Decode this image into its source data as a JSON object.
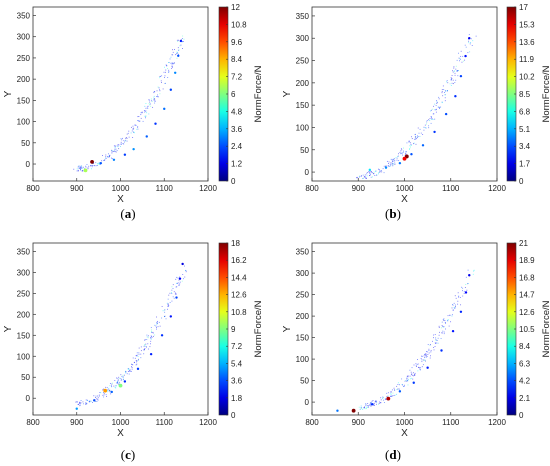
{
  "chart_data": [
    {
      "type": "scatter",
      "panel_label": "a",
      "xlabel": "X",
      "ylabel": "Y",
      "xlim": [
        800,
        1200
      ],
      "ylim": [
        -40,
        370
      ],
      "xticks": [
        "800",
        "900",
        "1000",
        "1100",
        "1200"
      ],
      "yticks": [
        "0",
        "50",
        "100",
        "150",
        "200",
        "250",
        "300",
        "350"
      ],
      "colorbar": {
        "label": "NormForce/N",
        "min": 0,
        "max": 12,
        "ticks": [
          "0",
          "1.2",
          "2.4",
          "3.6",
          "4.8",
          "6",
          "7.2",
          "8.4",
          "9.6",
          "10.8",
          "12"
        ]
      },
      "points": [
        [
          935,
          5,
          12
        ],
        [
          920,
          -15,
          6.5
        ],
        [
          955,
          2,
          2.5
        ],
        [
          985,
          10,
          3
        ],
        [
          1010,
          22,
          2.2
        ],
        [
          1030,
          35,
          3.2
        ],
        [
          1060,
          65,
          2.6
        ],
        [
          1080,
          95,
          2.1
        ],
        [
          1100,
          130,
          2.8
        ],
        [
          1115,
          175,
          2.3
        ],
        [
          1125,
          215,
          3.1
        ],
        [
          1132,
          255,
          2.5
        ],
        [
          1138,
          290,
          1.8
        ]
      ]
    },
    {
      "type": "scatter",
      "panel_label": "b",
      "xlabel": "X",
      "ylabel": "Y",
      "xlim": [
        800,
        1200
      ],
      "ylim": [
        -20,
        370
      ],
      "xticks": [
        "800",
        "900",
        "1000",
        "1100",
        "1200"
      ],
      "yticks": [
        "0",
        "50",
        "100",
        "150",
        "200",
        "250",
        "300",
        "350"
      ],
      "colorbar": {
        "label": "NormForce/N",
        "min": 0,
        "max": 17,
        "ticks": [
          "0",
          "1.7",
          "3.4",
          "5.1",
          "6.8",
          "8.5",
          "10.2",
          "11.9",
          "13.6",
          "15.3",
          "17"
        ]
      },
      "points": [
        [
          1005,
          35,
          17
        ],
        [
          1000,
          30,
          15
        ],
        [
          925,
          5,
          6
        ],
        [
          960,
          10,
          4.5
        ],
        [
          990,
          20,
          4
        ],
        [
          1015,
          40,
          3.5
        ],
        [
          1040,
          60,
          3.8
        ],
        [
          1065,
          90,
          3
        ],
        [
          1090,
          130,
          3.4
        ],
        [
          1110,
          170,
          2.9
        ],
        [
          1122,
          215,
          3.2
        ],
        [
          1132,
          260,
          2.4
        ],
        [
          1140,
          300,
          1.9
        ]
      ]
    },
    {
      "type": "scatter",
      "panel_label": "c",
      "xlabel": "X",
      "ylabel": "Y",
      "xlim": [
        800,
        1200
      ],
      "ylim": [
        -40,
        370
      ],
      "xticks": [
        "800",
        "900",
        "1000",
        "1100",
        "1200"
      ],
      "yticks": [
        "0",
        "50",
        "100",
        "150",
        "200",
        "250",
        "300",
        "350"
      ],
      "colorbar": {
        "label": "NormForce/N",
        "min": 0,
        "max": 18,
        "ticks": [
          "0",
          "1.8",
          "3.6",
          "5.4",
          "7.2",
          "9",
          "10.8",
          "12.6",
          "14.4",
          "16.2",
          "18"
        ]
      },
      "points": [
        [
          965,
          18,
          13
        ],
        [
          1000,
          30,
          9
        ],
        [
          900,
          -25,
          5
        ],
        [
          940,
          -5,
          3.5
        ],
        [
          980,
          15,
          4
        ],
        [
          1010,
          40,
          3
        ],
        [
          1040,
          70,
          3.3
        ],
        [
          1070,
          105,
          2.8
        ],
        [
          1095,
          150,
          3.1
        ],
        [
          1115,
          195,
          2.6
        ],
        [
          1128,
          240,
          3.4
        ],
        [
          1136,
          285,
          2.2
        ],
        [
          1142,
          320,
          1.7
        ]
      ]
    },
    {
      "type": "scatter",
      "panel_label": "d",
      "xlabel": "X",
      "ylabel": "Y",
      "xlim": [
        800,
        1200
      ],
      "ylim": [
        -30,
        370
      ],
      "xticks": [
        "800",
        "900",
        "1000",
        "1100",
        "1200"
      ],
      "yticks": [
        "0",
        "50",
        "100",
        "150",
        "200",
        "250",
        "300",
        "350"
      ],
      "colorbar": {
        "label": "NormForce/N",
        "min": 0,
        "max": 21,
        "ticks": [
          "0",
          "2.1",
          "4.2",
          "6.3",
          "8.4",
          "10.5",
          "12.6",
          "14.7",
          "16.8",
          "18.9",
          "21"
        ]
      },
      "points": [
        [
          890,
          -20,
          21
        ],
        [
          965,
          8,
          20
        ],
        [
          855,
          -20,
          5
        ],
        [
          930,
          -5,
          3.5
        ],
        [
          990,
          25,
          4.5
        ],
        [
          1020,
          45,
          3.8
        ],
        [
          1050,
          80,
          3.2
        ],
        [
          1080,
          120,
          3.6
        ],
        [
          1105,
          165,
          3
        ],
        [
          1122,
          210,
          3.4
        ],
        [
          1133,
          255,
          2.7
        ],
        [
          1140,
          295,
          2.2
        ]
      ]
    }
  ]
}
